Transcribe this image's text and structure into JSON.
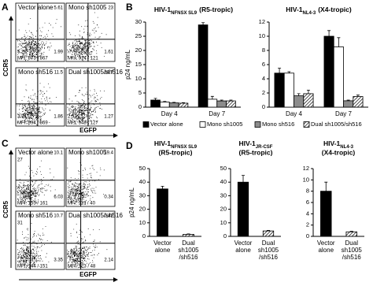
{
  "panel_labels": [
    "A",
    "B",
    "C",
    "D"
  ],
  "flow_A": {
    "y_label": "CCR5",
    "x_label": "EGFP",
    "plots": [
      {
        "title": "Vector alone",
        "ur": "5.61",
        "ll": "5.28",
        "lr": "1.99",
        "mfi": "MFI: 873 / 867"
      },
      {
        "title": "Mono sh1005",
        "ur": "23",
        "lr": "1.61",
        "mfi": "MFI: 914 / 121"
      },
      {
        "title": "Mono sh516",
        "ur": "11.5",
        "ll": "3.74",
        "lr": "1.86",
        "mfi": "MFI: 994 / 869"
      },
      {
        "title": "Dual sh1005/sh516",
        "ur": "14.7",
        "ll": "2.52",
        "lr": "1.27",
        "mfi": "MFI: 948 / 127"
      }
    ]
  },
  "flow_C": {
    "y_label": "CCR5",
    "x_label": "EGFP",
    "plots": [
      {
        "title": "Vector alone",
        "ul": "27",
        "ur": "10.1",
        "lr": "6.03",
        "mfi": "MFI: 155 / 161"
      },
      {
        "title": "Mono sh1005",
        "ur": "19.4",
        "lr": "0.34",
        "mfi": "MFI: 119 / 40"
      },
      {
        "title": "Mono sh516",
        "ul": "31",
        "ur": "10.7",
        "lr": "3.35",
        "mfi": "MFI: 144 / 151"
      },
      {
        "title": "Dual sh1005/sh516",
        "ur": "0.42",
        "lr": "2.14",
        "mfi": "MFI: 123 / 48"
      }
    ]
  },
  "chart_data": [
    {
      "type": "bar",
      "title": "HIV-1",
      "title_sub": "NFNSX SL9",
      "title_suffix": "(R5-tropic)",
      "y_label": "p24 ng/mL",
      "categories": [
        "Day 4",
        "Day 7"
      ],
      "ylim": [
        0,
        30
      ],
      "yticks": [
        0,
        5,
        10,
        15,
        20,
        25,
        30
      ],
      "series": [
        {
          "name": "Vector alone",
          "color": "#000000",
          "hatch": false,
          "values": [
            2.5,
            29
          ],
          "errors": [
            0.6,
            0.8
          ]
        },
        {
          "name": "Mono sh1005",
          "color": "#ffffff",
          "hatch": false,
          "values": [
            1.8,
            2.8
          ],
          "errors": [
            0.2,
            1.0
          ]
        },
        {
          "name": "Mono sh516",
          "color": "#8c8c8c",
          "hatch": false,
          "values": [
            1.5,
            2.2
          ],
          "errors": [
            0.2,
            0.3
          ]
        },
        {
          "name": "Dual sh1005/sh516",
          "color": "#ffffff",
          "hatch": true,
          "values": [
            1.4,
            2.2
          ],
          "errors": [
            0.2,
            0.3
          ]
        }
      ]
    },
    {
      "type": "bar",
      "title": "HIV-1",
      "title_sub": "NL4-3",
      "title_suffix": "(X4-tropic)",
      "categories": [
        "Day 4",
        "Day 7"
      ],
      "ylim": [
        0,
        12
      ],
      "yticks": [
        0,
        2,
        4,
        6,
        8,
        10,
        12
      ],
      "series": [
        {
          "color": "#000000",
          "hatch": false,
          "values": [
            4.8,
            10
          ],
          "errors": [
            0.7,
            0.8
          ]
        },
        {
          "color": "#ffffff",
          "hatch": false,
          "values": [
            4.8,
            8.5
          ],
          "errors": [
            0.2,
            1.3
          ]
        },
        {
          "color": "#8c8c8c",
          "hatch": false,
          "values": [
            1.6,
            0.9
          ],
          "errors": [
            0.3,
            0.1
          ]
        },
        {
          "color": "#ffffff",
          "hatch": true,
          "values": [
            1.9,
            1.5
          ],
          "errors": [
            0.5,
            0.2
          ]
        }
      ]
    },
    {
      "type": "bar",
      "title": "HIV-1",
      "title_sub": "NFNSX SL9",
      "title_suffix": "(R5-tropic)",
      "y_label": "p24 ng/mL",
      "categories": [
        "Vector alone",
        "Dual sh1005 /sh516"
      ],
      "ylim": [
        0,
        50
      ],
      "yticks": [
        0,
        10,
        20,
        30,
        40,
        50
      ],
      "values": [
        35,
        1.5
      ],
      "errors": [
        2,
        0.3
      ],
      "colors": [
        "#000000",
        "#ffffff"
      ],
      "hatch": [
        false,
        true
      ]
    },
    {
      "type": "bar",
      "title": "HIV-1",
      "title_sub": "JR-CSF",
      "title_suffix": "(R5-tropic)",
      "categories": [
        "Vector alone",
        "Dual sh1005 /sh516"
      ],
      "ylim": [
        0,
        50
      ],
      "yticks": [
        0,
        10,
        20,
        30,
        40,
        50
      ],
      "values": [
        40,
        4
      ],
      "errors": [
        5,
        0.4
      ],
      "colors": [
        "#000000",
        "#ffffff"
      ],
      "hatch": [
        false,
        true
      ]
    },
    {
      "type": "bar",
      "title": "HIV-1",
      "title_sub": "NL4-3",
      "title_suffix": "(X4-tropic)",
      "categories": [
        "Vector alone",
        "Dual sh1005 /sh516"
      ],
      "ylim": [
        0,
        12
      ],
      "yticks": [
        0,
        2,
        4,
        6,
        8,
        10,
        12
      ],
      "values": [
        8,
        0.8
      ],
      "errors": [
        1.6,
        0.1
      ],
      "colors": [
        "#000000",
        "#ffffff"
      ],
      "hatch": [
        false,
        true
      ]
    }
  ]
}
